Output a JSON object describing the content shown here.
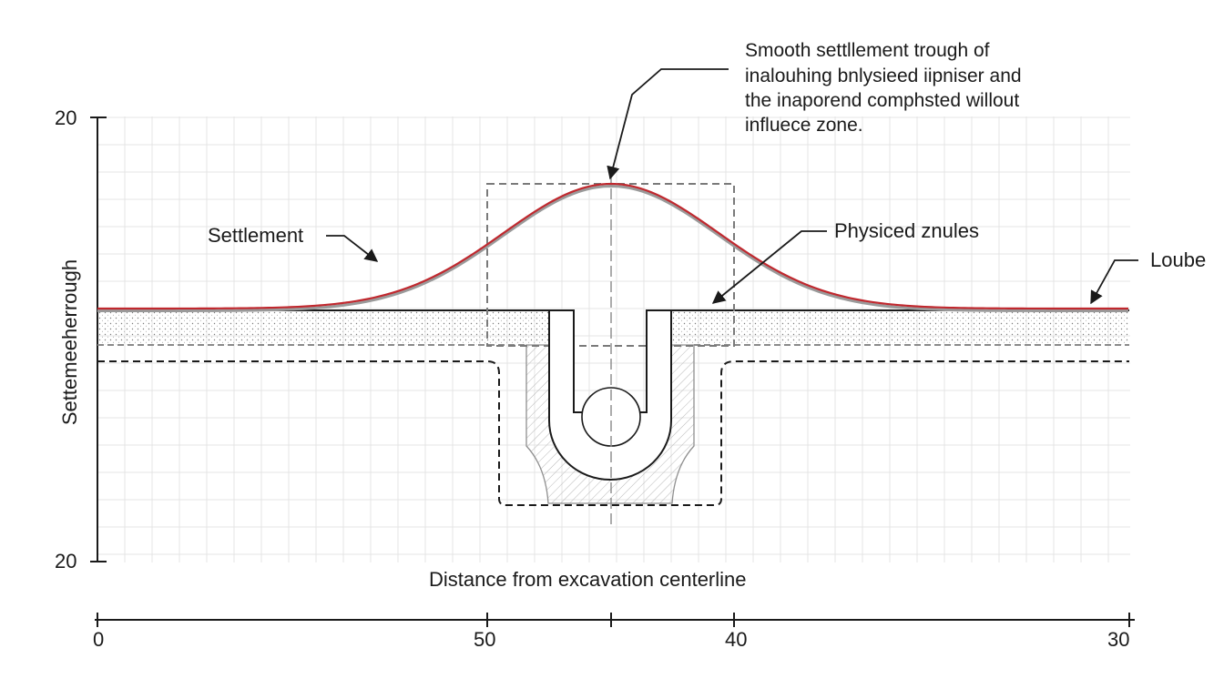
{
  "annotation": {
    "lines": [
      "Smooth settllement trough of",
      "inalouhing bnlysieed iipniser and",
      "the inaporend comphsted willout",
      "influece zone."
    ]
  },
  "labels": {
    "settlement": "Settlement",
    "physiced": "Physiced zn­ules",
    "loube": "Loube"
  },
  "axes": {
    "y_title": "Settemeeherrough",
    "y_top": "20",
    "y_bottom": "20",
    "x_title": "Distance from excavation centerline",
    "x_ticks": [
      "0",
      "50",
      "40",
      "30"
    ]
  },
  "colors": {
    "trough": "#c0282e",
    "trough_shadow": "#9a9a9a",
    "grid": "#e4e4e4",
    "line": "#1a1a1a",
    "dashed_gray": "#7a7a7a"
  }
}
